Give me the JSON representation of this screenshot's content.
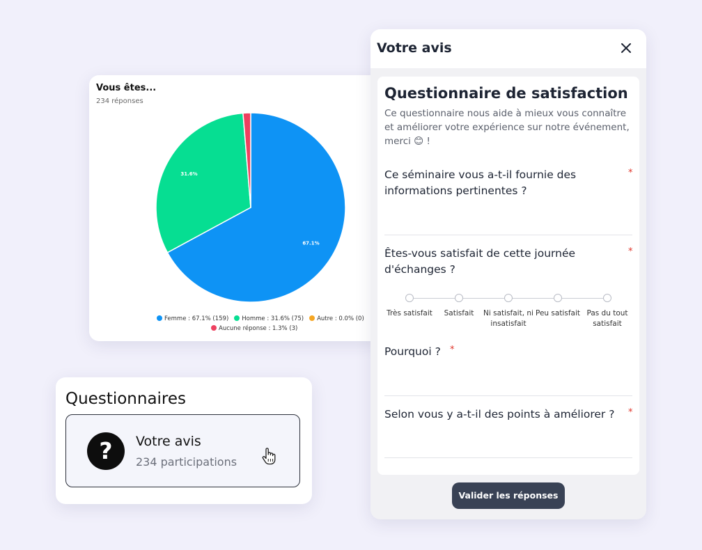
{
  "chart_card": {
    "title": "Vous êtes...",
    "subtitle": "234 réponses"
  },
  "chart_data": {
    "type": "pie",
    "title": "Vous êtes...",
    "total_responses": 234,
    "slices": [
      {
        "label": "Femme",
        "percent": 67.1,
        "count": 159,
        "color": "#0e93f5",
        "legend": "Femme : 67.1% (159)",
        "data_label": "67.1%"
      },
      {
        "label": "Homme",
        "percent": 31.6,
        "count": 75,
        "color": "#06de92",
        "legend": "Homme : 31.6% (75)",
        "data_label": "31.6%"
      },
      {
        "label": "Autre",
        "percent": 0.0,
        "count": 0,
        "color": "#f5a623",
        "legend": "Autre : 0.0% (0)",
        "data_label": ""
      },
      {
        "label": "Aucune réponse",
        "percent": 1.3,
        "count": 3,
        "color": "#ee4160",
        "legend": "Aucune réponse : 1.3% (3)",
        "data_label": ""
      }
    ],
    "legend_position": "bottom"
  },
  "questionnaires": {
    "title": "Questionnaires",
    "item": {
      "icon": "question-icon",
      "icon_glyph": "?",
      "name": "Votre avis",
      "count": "234 participations"
    }
  },
  "panel": {
    "title": "Votre avis",
    "close_icon": "close-icon",
    "form_title": "Questionnaire de satisfaction",
    "form_description": "Ce questionnaire nous aide à mieux vous connaître et améliorer votre expérience sur notre événement, merci 😊 !",
    "questions": [
      {
        "text": "Ce séminaire vous a-t-il fournie des informations pertinentes ?",
        "required_mark": "*"
      },
      {
        "text": "Êtes-vous satisfait de cette journée d'échanges ?",
        "required_mark": "*"
      },
      {
        "text": "Pourquoi ?",
        "required_mark": "*"
      },
      {
        "text": "Selon vous y a-t-il des points à améliorer ?",
        "required_mark": "*"
      }
    ],
    "scale_options": [
      "Très satisfait",
      "Satisfait",
      "Ni satisfait, ni insatisfait",
      "Peu satisfait",
      "Pas du tout satisfait"
    ],
    "submit_label": "Valider les réponses"
  },
  "colors": {
    "background": "#f1f0fb",
    "button": "#394255",
    "required": "#e0352b"
  }
}
